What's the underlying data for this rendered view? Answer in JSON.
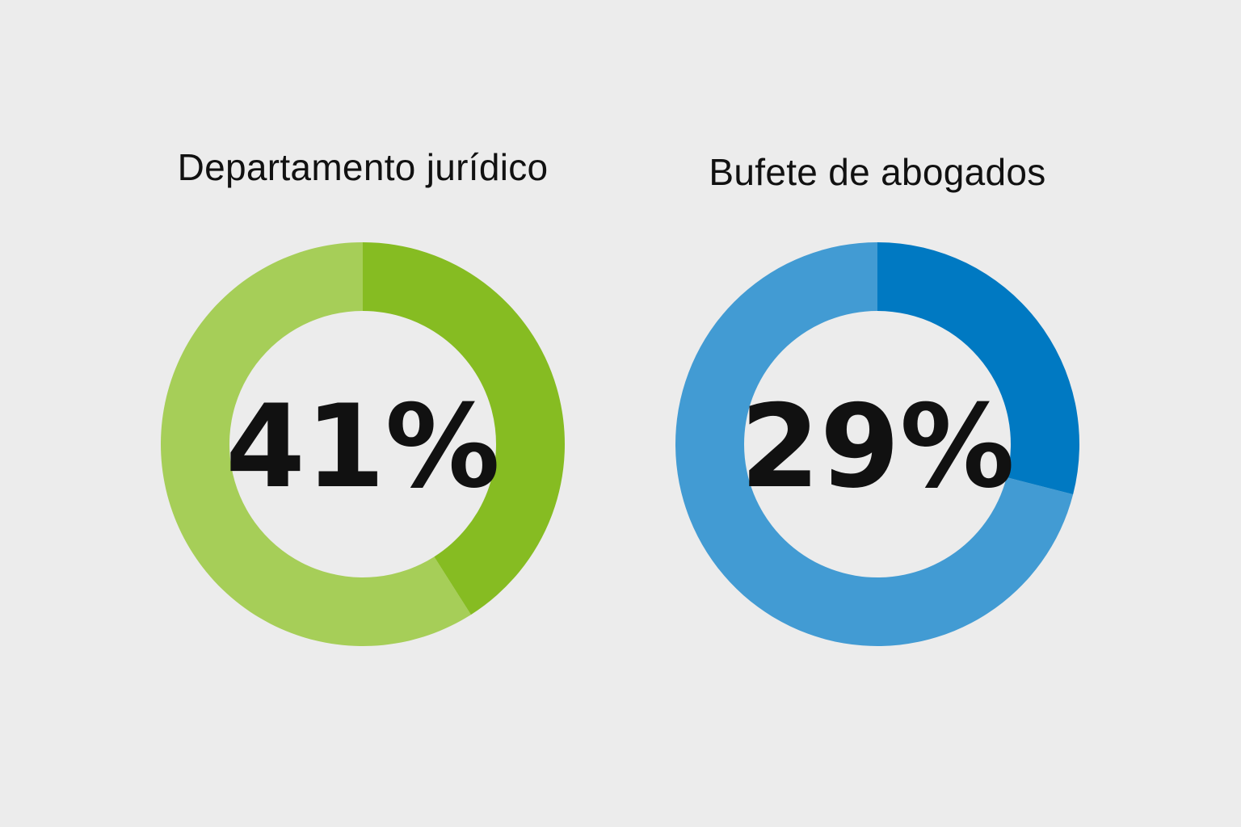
{
  "chart_data": [
    {
      "type": "pie",
      "title": "Departamento jurídico",
      "value": 41,
      "label": "41%",
      "colors": {
        "highlight": "#86bc22",
        "remainder": "#a6ce58"
      }
    },
    {
      "type": "pie",
      "title": "Bufete de abogados",
      "value": 29,
      "label": "29%",
      "colors": {
        "highlight": "#0079c2",
        "remainder": "#429bd3"
      }
    }
  ]
}
